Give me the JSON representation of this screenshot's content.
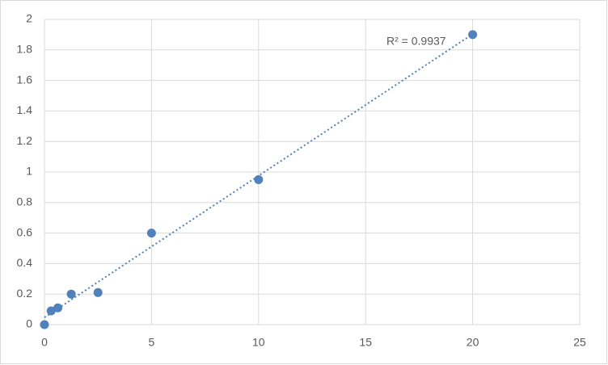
{
  "chart_data": {
    "type": "scatter",
    "x": [
      0,
      0.3125,
      0.625,
      1.25,
      2.5,
      5,
      10,
      20
    ],
    "values": [
      0,
      0.09,
      0.11,
      0.2,
      0.21,
      0.6,
      0.95,
      1.9
    ],
    "color": "#4f81bd",
    "xlim": [
      0,
      25
    ],
    "xticks": [
      0,
      5,
      10,
      15,
      20,
      25
    ],
    "ylim": [
      0,
      2
    ],
    "yticks": [
      0,
      0.2,
      0.4,
      0.6,
      0.8,
      1,
      1.2,
      1.4,
      1.6,
      1.8,
      2
    ],
    "grid": true,
    "trendline": "linear",
    "annotation": "R² = 0.9937"
  }
}
